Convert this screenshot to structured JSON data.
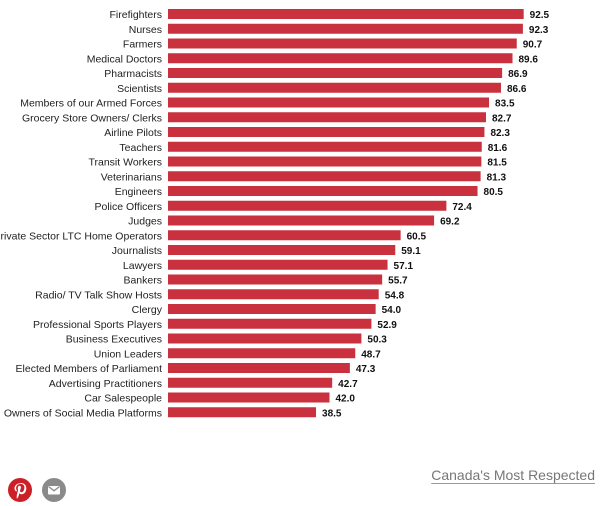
{
  "colors": {
    "bar": "#c8313d",
    "pinterest": "#cb2027",
    "email_bg": "#8a8a8a"
  },
  "icons": {
    "pinterest": "pinterest-icon",
    "email": "mail-icon"
  },
  "chart_data": {
    "type": "bar",
    "orientation": "horizontal",
    "title": "",
    "xlabel": "",
    "ylabel": "",
    "xlim": [
      0,
      100
    ],
    "grid": false,
    "categories": [
      "Firefighters",
      "Nurses",
      "Farmers",
      "Medical Doctors",
      "Pharmacists",
      "Scientists",
      "Members of our Armed Forces",
      "Grocery Store Owners/ Clerks",
      "Airline Pilots",
      "Teachers",
      "Transit Workers",
      "Veterinarians",
      "Engineers",
      "Police Officers",
      "Judges",
      "Private Sector LTC Home Operators",
      "Journalists",
      "Lawyers",
      "Bankers",
      "Radio/ TV Talk Show Hosts",
      "Clergy",
      "Professional Sports Players",
      "Business Executives",
      "Union Leaders",
      "Elected Members of Parliament",
      "Advertising Practitioners",
      "Car Salespeople",
      "Owners of Social Media Platforms"
    ],
    "values": [
      92.5,
      92.3,
      90.7,
      89.6,
      86.9,
      86.6,
      83.5,
      82.7,
      82.3,
      81.6,
      81.5,
      81.3,
      80.5,
      72.4,
      69.2,
      60.5,
      59.1,
      57.1,
      55.7,
      54.8,
      54.0,
      52.9,
      50.3,
      48.7,
      47.3,
      42.7,
      42.0,
      38.5
    ],
    "value_labels": [
      "92.5",
      "92.3",
      "90.7",
      "89.6",
      "86.9",
      "86.6",
      "83.5",
      "82.7",
      "82.3",
      "81.6",
      "81.5",
      "81.3",
      "80.5",
      "72.4",
      "69.2",
      "60.5",
      "59.1",
      "57.1",
      "55.7",
      "54.8",
      "54.0",
      "52.9",
      "50.3",
      "48.7",
      "47.3",
      "42.7",
      "42.0",
      "38.5"
    ]
  },
  "footer": {
    "link_text": "Canada's Most Respected"
  }
}
